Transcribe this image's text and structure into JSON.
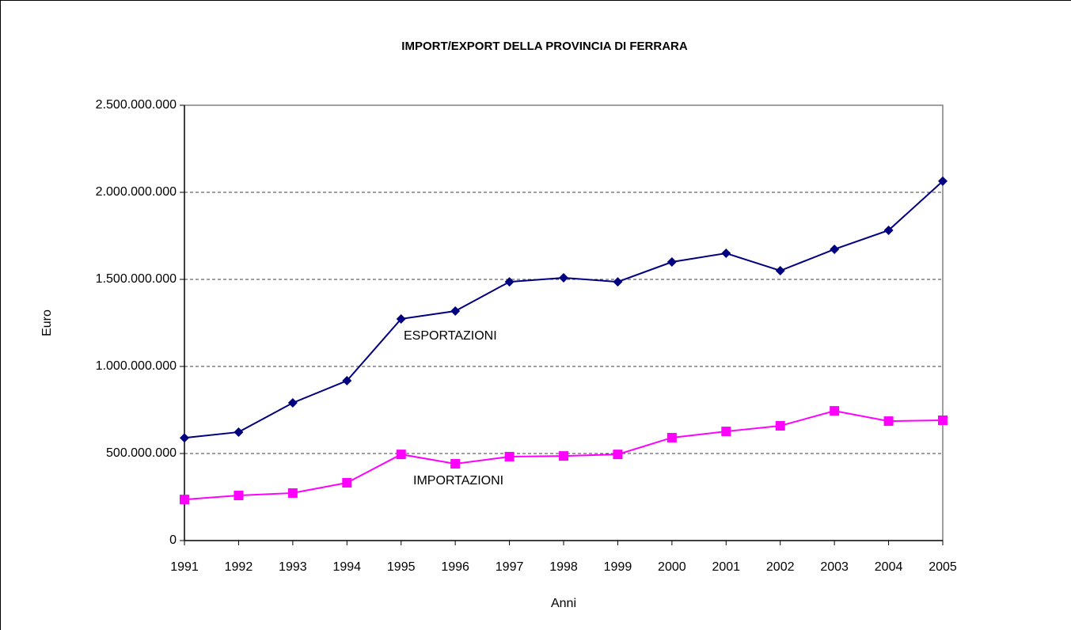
{
  "chart_data": {
    "type": "line",
    "title": "IMPORT/EXPORT DELLA PROVINCIA DI FERRARA",
    "xlabel": "Anni",
    "ylabel": "Euro",
    "categories": [
      "1991",
      "1992",
      "1993",
      "1994",
      "1995",
      "1996",
      "1997",
      "1998",
      "1999",
      "2000",
      "2001",
      "2002",
      "2003",
      "2004",
      "2005"
    ],
    "series": [
      {
        "name": "ESPORTAZIONI",
        "color": "#000080",
        "marker": "diamond",
        "values": [
          590000000,
          623000000,
          791000000,
          918000000,
          1273000000,
          1318000000,
          1486000000,
          1509000000,
          1486000000,
          1600000000,
          1650000000,
          1550000000,
          1673000000,
          1782000000,
          2064000000
        ]
      },
      {
        "name": "IMPORTAZIONI",
        "color": "#ff00ff",
        "marker": "square",
        "values": [
          236000000,
          259000000,
          273000000,
          332000000,
          495000000,
          441000000,
          482000000,
          486000000,
          495000000,
          591000000,
          627000000,
          659000000,
          745000000,
          686000000,
          691000000
        ]
      }
    ],
    "ylim": [
      0,
      2500000000
    ],
    "yticks": [
      0,
      {
        "value": 500000000,
        "label": "500.000.000"
      },
      {
        "value": 1000000000,
        "label": "1.000.000.000"
      },
      {
        "value": 1500000000,
        "label": "1.500.000.000"
      },
      {
        "value": 2000000000,
        "label": "2.000.000.000"
      },
      {
        "value": 2500000000,
        "label": "2.500.000.000"
      }
    ],
    "grid": true
  }
}
